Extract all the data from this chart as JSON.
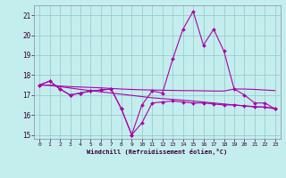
{
  "xlabel": "Windchill (Refroidissement éolien,°C)",
  "background_color": "#c4eeee",
  "grid_color": "#99cccc",
  "line_color": "#aa00aa",
  "xlim": [
    -0.5,
    23.5
  ],
  "ylim": [
    14.8,
    21.5
  ],
  "yticks": [
    15,
    16,
    17,
    18,
    19,
    20,
    21
  ],
  "xticks": [
    0,
    1,
    2,
    3,
    4,
    5,
    6,
    7,
    8,
    9,
    10,
    11,
    12,
    13,
    14,
    15,
    16,
    17,
    18,
    19,
    20,
    21,
    22,
    23
  ],
  "series": {
    "line_peak": {
      "x": [
        0,
        1,
        2,
        3,
        4,
        5,
        6,
        7,
        8,
        9,
        10,
        11,
        12,
        13,
        14,
        15,
        16,
        17,
        18,
        19,
        20,
        21,
        22,
        23
      ],
      "y": [
        17.5,
        17.7,
        17.3,
        17.0,
        17.1,
        17.2,
        17.25,
        17.3,
        16.3,
        15.0,
        16.5,
        17.2,
        17.1,
        18.8,
        20.3,
        21.2,
        19.5,
        20.3,
        19.2,
        17.3,
        17.0,
        16.6,
        16.6,
        16.3
      ],
      "markers": true
    },
    "line_dip": {
      "x": [
        0,
        1,
        2,
        3,
        4,
        5,
        6,
        7,
        8,
        9,
        10,
        11,
        12,
        13,
        14,
        15,
        16,
        17,
        18,
        19,
        20,
        21,
        22,
        23
      ],
      "y": [
        17.5,
        17.7,
        17.3,
        17.0,
        17.1,
        17.2,
        17.25,
        17.3,
        16.3,
        15.0,
        15.6,
        16.6,
        16.65,
        16.7,
        16.65,
        16.6,
        16.6,
        16.55,
        16.5,
        16.5,
        16.45,
        16.4,
        16.4,
        16.3
      ],
      "markers": true
    },
    "line_flat": {
      "x": [
        0,
        1,
        2,
        3,
        4,
        5,
        6,
        7,
        8,
        9,
        10,
        11,
        12,
        13,
        14,
        15,
        16,
        17,
        18,
        19,
        20,
        21,
        22,
        23
      ],
      "y": [
        17.5,
        17.5,
        17.45,
        17.42,
        17.4,
        17.38,
        17.36,
        17.33,
        17.3,
        17.28,
        17.26,
        17.25,
        17.24,
        17.23,
        17.22,
        17.22,
        17.21,
        17.2,
        17.2,
        17.3,
        17.3,
        17.28,
        17.25,
        17.22
      ],
      "markers": false
    },
    "line_decline": {
      "x": [
        0,
        1,
        2,
        3,
        4,
        5,
        6,
        7,
        8,
        9,
        10,
        11,
        12,
        13,
        14,
        15,
        16,
        17,
        18,
        19,
        20,
        21,
        22,
        23
      ],
      "y": [
        17.5,
        17.48,
        17.42,
        17.35,
        17.28,
        17.22,
        17.16,
        17.1,
        17.04,
        16.98,
        16.92,
        16.86,
        16.82,
        16.78,
        16.74,
        16.7,
        16.65,
        16.6,
        16.55,
        16.5,
        16.46,
        16.42,
        16.38,
        16.34
      ],
      "markers": false
    }
  }
}
